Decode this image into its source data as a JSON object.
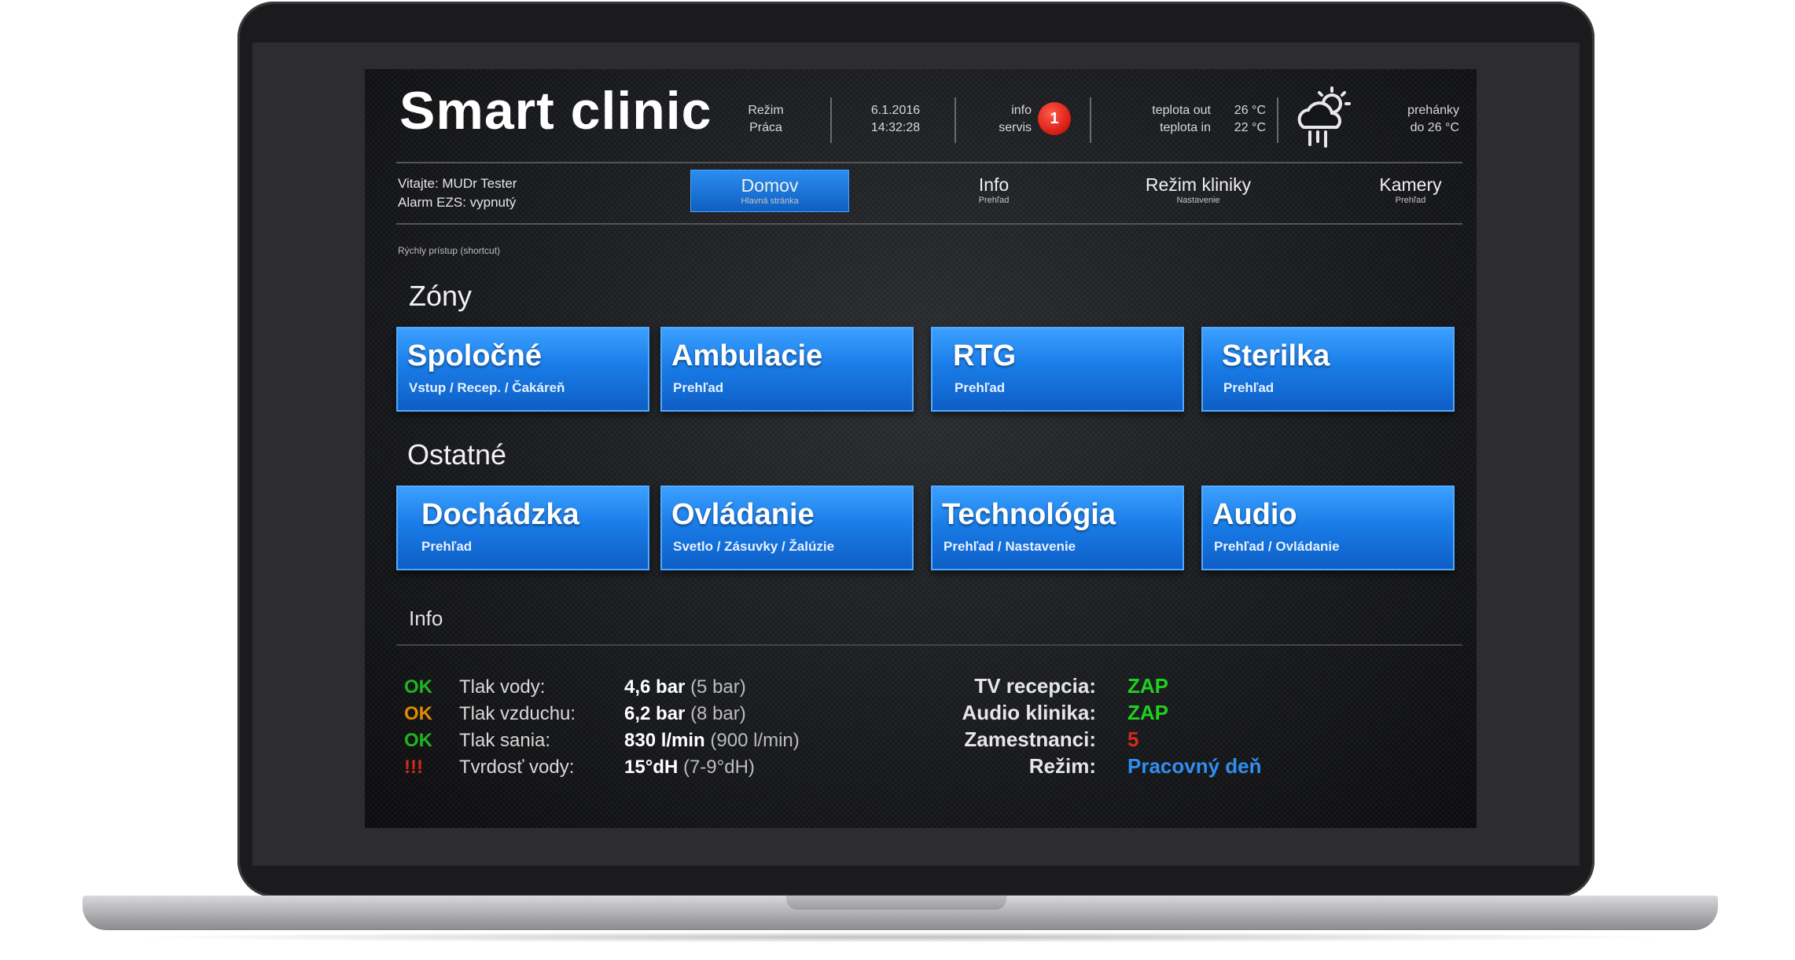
{
  "app": {
    "title": "Smart clinic"
  },
  "header": {
    "mode_label": "Režim",
    "mode_value": "Práca",
    "date": "6.1.2016",
    "time": "14:32:28",
    "info_label": "info",
    "service_label": "servis",
    "alert_count": "1",
    "temp_out_label": "teplota out",
    "temp_out_value": "26 °C",
    "temp_in_label": "teplota in",
    "temp_in_value": "22 °C",
    "weather_line1": "prehánky",
    "weather_line2": "do 26 °C",
    "weather_icon": "cloud-sun-rain-icon"
  },
  "welcome": {
    "line1": "Vitajte: MUDr Tester",
    "line2": "Alarm EZS: vypnutý"
  },
  "nav": [
    {
      "label": "Domov",
      "sub": "Hlavná stránka",
      "active": true
    },
    {
      "label": "Info",
      "sub": "Prehľad"
    },
    {
      "label": "Režim kliniky",
      "sub": "Nastavenie"
    },
    {
      "label": "Kamery",
      "sub": "Prehľad"
    }
  ],
  "shortcut_label": "Rýchly prístup (shortcut)",
  "zones": {
    "title": "Zóny",
    "tiles": [
      {
        "title": "Spoločné",
        "sub": "Vstup / Recep. / Čakáreň"
      },
      {
        "title": "Ambulacie",
        "sub": "Prehľad"
      },
      {
        "title": "RTG",
        "sub": "Prehľad"
      },
      {
        "title": "Sterilka",
        "sub": "Prehľad"
      }
    ]
  },
  "others": {
    "title": "Ostatné",
    "tiles": [
      {
        "title": "Dochádzka",
        "sub": "Prehľad"
      },
      {
        "title": "Ovládanie",
        "sub": "Svetlo / Zásuvky / Žalúzie"
      },
      {
        "title": "Technológia",
        "sub": "Prehľad / Nastavenie"
      },
      {
        "title": "Audio",
        "sub": "Prehľad / Ovládanie"
      }
    ]
  },
  "info": {
    "title": "Info",
    "status": [
      {
        "state": "OK",
        "color": "#1fb51f",
        "label": "Tlak vody:",
        "value": "4,6 bar",
        "nominal": "(5 bar)"
      },
      {
        "state": "OK",
        "color": "#e08a00",
        "label": "Tlak vzduchu:",
        "value": "6,2 bar",
        "nominal": "(8 bar)"
      },
      {
        "state": "OK",
        "color": "#1fb51f",
        "label": "Tlak sania:",
        "value": "830 l/min",
        "nominal": "(900 l/min)"
      },
      {
        "state": "!!!",
        "color": "#d42a1a",
        "label": "Tvrdosť vody:",
        "value": "15°dH",
        "nominal": "(7-9°dH)"
      }
    ],
    "right": [
      {
        "label": "TV recepcia:",
        "value": "ZAP",
        "color": "#1fd01f"
      },
      {
        "label": "Audio klinika:",
        "value": "ZAP",
        "color": "#1fd01f"
      },
      {
        "label": "Zamestnanci:",
        "value": "5",
        "color": "#d42a1a"
      },
      {
        "label": "Režim:",
        "value": "Pracovný deň",
        "color": "#2f8ff0"
      }
    ]
  }
}
